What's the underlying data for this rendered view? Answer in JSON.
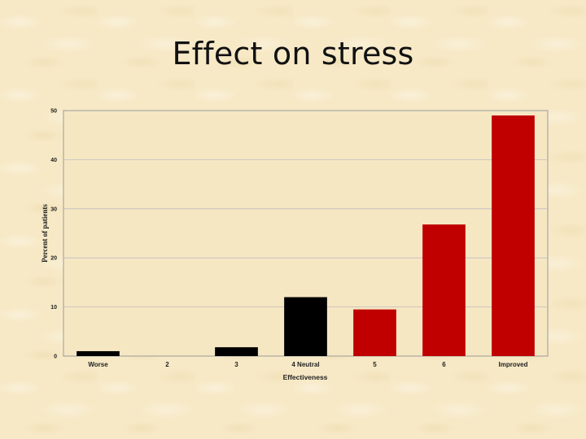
{
  "slide": {
    "title": "Effect on stress"
  },
  "colors": {
    "neutral_bar": "#000000",
    "positive_bar": "#c00000",
    "grid": "#bdbdbd"
  },
  "chart_data": {
    "type": "bar",
    "xlabel": "Effectiveness",
    "ylabel": "Percent of patients",
    "categories": [
      "Worse",
      "2",
      "3",
      "4 Neutral",
      "5",
      "6",
      "Improved"
    ],
    "values": [
      1,
      0,
      1.8,
      12,
      9.5,
      26.8,
      49
    ],
    "bar_colors": [
      "#000000",
      "#000000",
      "#000000",
      "#000000",
      "#c00000",
      "#c00000",
      "#c00000"
    ],
    "ylim": [
      0,
      50
    ],
    "yticks": [
      0,
      10,
      20,
      30,
      40,
      50
    ],
    "grid": true,
    "legend": "none"
  }
}
